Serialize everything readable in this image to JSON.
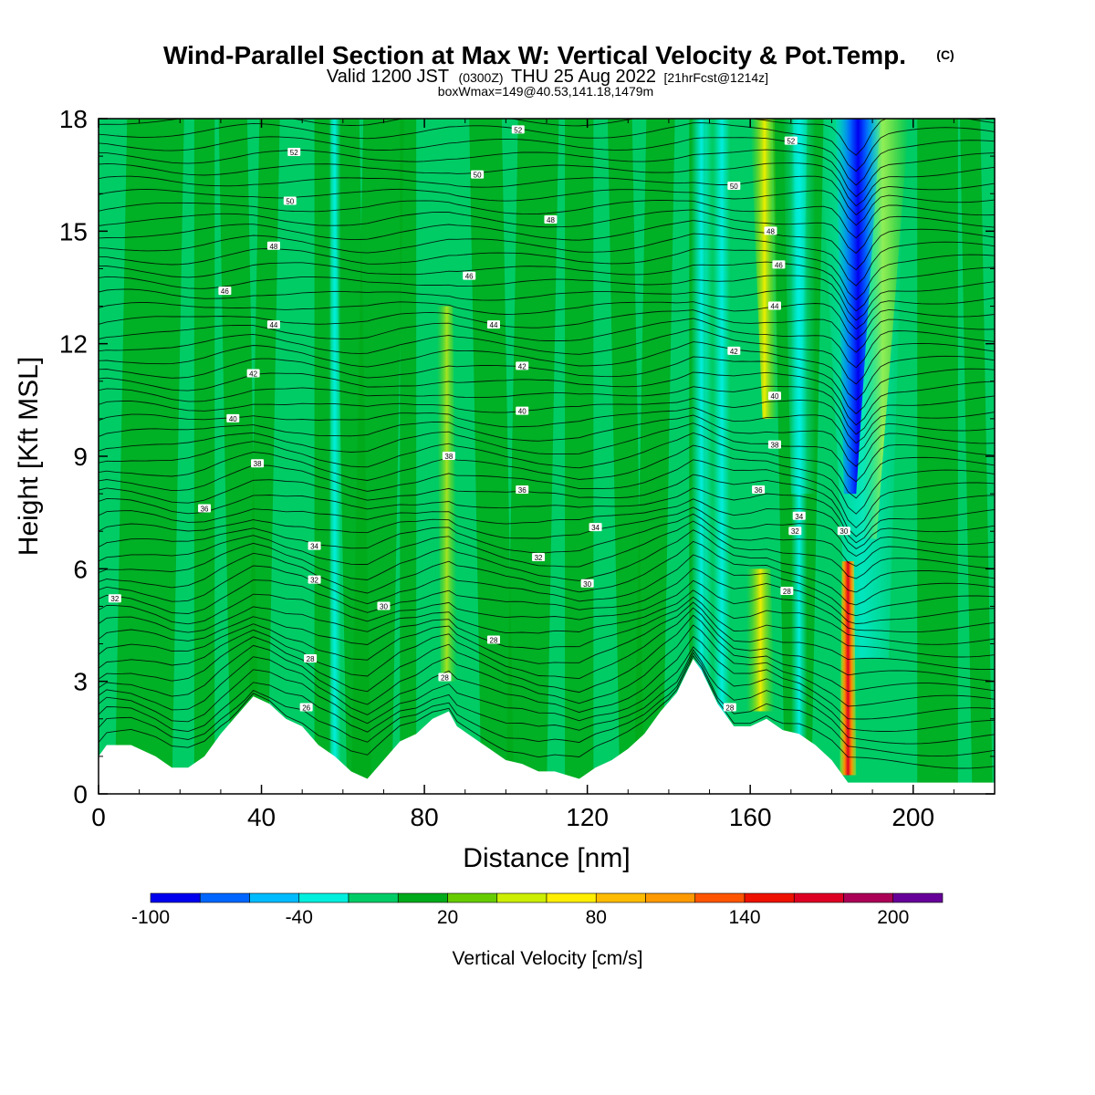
{
  "chart_data": {
    "type": "heatmap",
    "title": "Wind-Parallel Section at Max W: Vertical Velocity & Pot.Temp.",
    "title_mark": "(C)",
    "subtitle_main": "Valid 1200 JST",
    "subtitle_small1": "(0300Z)",
    "subtitle_mid": "THU 25 Aug 2022",
    "subtitle_small2": "[21hrFcst@1214z]",
    "subtitle2": "boxWmax=149@40.53,141.18,1479m",
    "xlabel": "Distance [nm]",
    "ylabel": "Height [Kft MSL]",
    "xlim": [
      0,
      220
    ],
    "ylim": [
      0,
      18
    ],
    "xticks": [
      "0",
      "40",
      "80",
      "120",
      "160",
      "200"
    ],
    "yticks": [
      "0",
      "3",
      "6",
      "9",
      "12",
      "15",
      "18"
    ],
    "colorbar": {
      "label": "Vertical Velocity [cm/s]",
      "range": [
        -100,
        220
      ],
      "ticks": [
        "-100",
        "-40",
        "20",
        "80",
        "140",
        "200"
      ],
      "colors": [
        "#0000ee",
        "#0066ff",
        "#00bbff",
        "#00eedd",
        "#00cc66",
        "#00aa1a",
        "#66cc00",
        "#ccee00",
        "#ffee00",
        "#ffbb00",
        "#ff9900",
        "#ff5500",
        "#ee1100",
        "#dd0022",
        "#aa0055",
        "#660099"
      ]
    },
    "terrain": [
      [
        0,
        1.0
      ],
      [
        2,
        1.3
      ],
      [
        8,
        1.3
      ],
      [
        14,
        1.0
      ],
      [
        18,
        0.7
      ],
      [
        22,
        0.7
      ],
      [
        26,
        1.0
      ],
      [
        30,
        1.6
      ],
      [
        34,
        2.1
      ],
      [
        38,
        2.6
      ],
      [
        42,
        2.4
      ],
      [
        46,
        2.0
      ],
      [
        50,
        1.8
      ],
      [
        54,
        1.3
      ],
      [
        58,
        1.0
      ],
      [
        62,
        0.6
      ],
      [
        66,
        0.4
      ],
      [
        70,
        0.9
      ],
      [
        74,
        1.4
      ],
      [
        78,
        1.6
      ],
      [
        82,
        2.0
      ],
      [
        86,
        2.2
      ],
      [
        88,
        1.8
      ],
      [
        92,
        1.5
      ],
      [
        96,
        1.2
      ],
      [
        100,
        0.9
      ],
      [
        104,
        0.8
      ],
      [
        108,
        0.6
      ],
      [
        112,
        0.6
      ],
      [
        118,
        0.4
      ],
      [
        122,
        0.7
      ],
      [
        126,
        0.9
      ],
      [
        130,
        1.2
      ],
      [
        134,
        1.6
      ],
      [
        138,
        2.2
      ],
      [
        142,
        2.7
      ],
      [
        146,
        3.6
      ],
      [
        148,
        3.3
      ],
      [
        152,
        2.4
      ],
      [
        156,
        1.8
      ],
      [
        160,
        1.8
      ],
      [
        164,
        2.0
      ],
      [
        168,
        1.7
      ],
      [
        172,
        1.6
      ],
      [
        176,
        1.3
      ],
      [
        180,
        0.9
      ],
      [
        184,
        0.3
      ],
      [
        188,
        0.3
      ],
      [
        220,
        0.3
      ]
    ],
    "theta_labels": [
      {
        "x": 48,
        "y": 17.1,
        "t": "52"
      },
      {
        "x": 103,
        "y": 17.7,
        "t": "52"
      },
      {
        "x": 170,
        "y": 17.4,
        "t": "52"
      },
      {
        "x": 47,
        "y": 15.8,
        "t": "50"
      },
      {
        "x": 93,
        "y": 16.5,
        "t": "50"
      },
      {
        "x": 156,
        "y": 16.2,
        "t": "50"
      },
      {
        "x": 111,
        "y": 15.3,
        "t": "48"
      },
      {
        "x": 165,
        "y": 15.0,
        "t": "48"
      },
      {
        "x": 43,
        "y": 14.6,
        "t": "48"
      },
      {
        "x": 91,
        "y": 13.8,
        "t": "46"
      },
      {
        "x": 167,
        "y": 14.1,
        "t": "46"
      },
      {
        "x": 31,
        "y": 13.4,
        "t": "46"
      },
      {
        "x": 43,
        "y": 12.5,
        "t": "44"
      },
      {
        "x": 97,
        "y": 12.5,
        "t": "44"
      },
      {
        "x": 166,
        "y": 13.0,
        "t": "44"
      },
      {
        "x": 38,
        "y": 11.2,
        "t": "42"
      },
      {
        "x": 104,
        "y": 11.4,
        "t": "42"
      },
      {
        "x": 156,
        "y": 11.8,
        "t": "42"
      },
      {
        "x": 33,
        "y": 10.0,
        "t": "40"
      },
      {
        "x": 104,
        "y": 10.2,
        "t": "40"
      },
      {
        "x": 166,
        "y": 10.6,
        "t": "40"
      },
      {
        "x": 39,
        "y": 8.8,
        "t": "38"
      },
      {
        "x": 86,
        "y": 9.0,
        "t": "38"
      },
      {
        "x": 166,
        "y": 9.3,
        "t": "38"
      },
      {
        "x": 26,
        "y": 7.6,
        "t": "36"
      },
      {
        "x": 104,
        "y": 8.1,
        "t": "36"
      },
      {
        "x": 162,
        "y": 8.1,
        "t": "36"
      },
      {
        "x": 53,
        "y": 6.6,
        "t": "34"
      },
      {
        "x": 122,
        "y": 7.1,
        "t": "34"
      },
      {
        "x": 172,
        "y": 7.4,
        "t": "34"
      },
      {
        "x": 108,
        "y": 6.3,
        "t": "32"
      },
      {
        "x": 171,
        "y": 7.0,
        "t": "32"
      },
      {
        "x": 183,
        "y": 7.0,
        "t": "30"
      },
      {
        "x": 4,
        "y": 5.2,
        "t": "32"
      },
      {
        "x": 53,
        "y": 5.7,
        "t": "32"
      },
      {
        "x": 70,
        "y": 5.0,
        "t": "30"
      },
      {
        "x": 120,
        "y": 5.6,
        "t": "30"
      },
      {
        "x": 169,
        "y": 5.4,
        "t": "28"
      },
      {
        "x": 52,
        "y": 3.6,
        "t": "28"
      },
      {
        "x": 97,
        "y": 4.1,
        "t": "28"
      },
      {
        "x": 85,
        "y": 3.1,
        "t": "28"
      },
      {
        "x": 51,
        "y": 2.3,
        "t": "26"
      },
      {
        "x": 155,
        "y": 2.3,
        "t": "28"
      }
    ]
  }
}
